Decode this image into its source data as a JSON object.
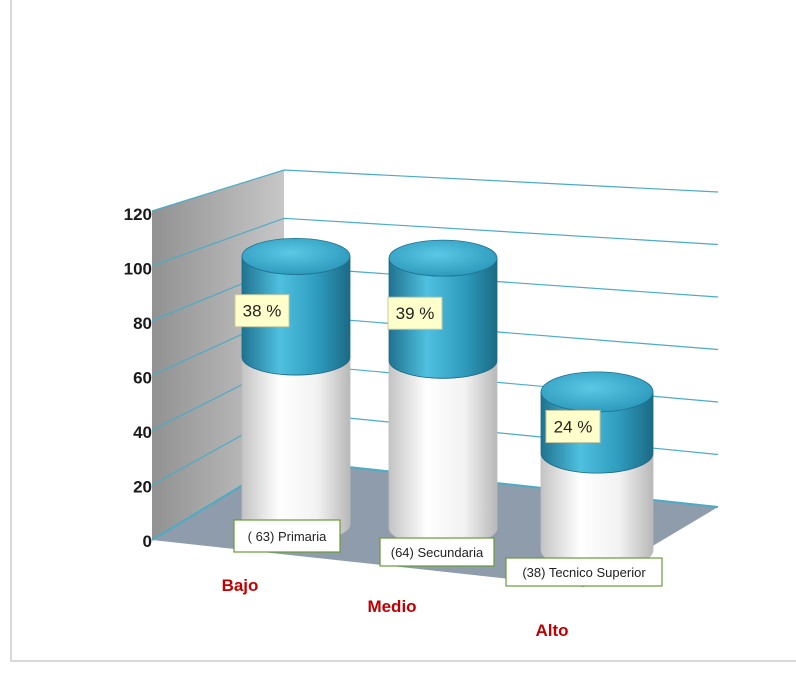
{
  "chart_data": {
    "type": "bar",
    "style": "3d-stacked-cylinder",
    "categories": [
      "Bajo",
      "Medio",
      "Alto"
    ],
    "series": [
      {
        "values": [
          63,
          64,
          38
        ]
      },
      {
        "values": [
          38,
          39,
          24
        ]
      }
    ],
    "percent_labels": [
      "38 %",
      "39 %",
      "24 %"
    ],
    "count_labels": [
      "( 63) Primaria",
      "(64) Secundaria",
      "(38) Tecnico Superior"
    ],
    "yticks": [
      "0",
      "20",
      "40",
      "60",
      "80",
      "100",
      "120"
    ],
    "ylim": [
      0,
      120
    ],
    "grid": true,
    "legend": "none",
    "colors": {
      "lower_segment": "#f2f2f2",
      "upper_segment": "#2e9bbd",
      "category_label": "#c00000",
      "gridline": "#4bacc6",
      "floor": "#8e9cac",
      "back_wall": "#9a9a9a"
    }
  }
}
